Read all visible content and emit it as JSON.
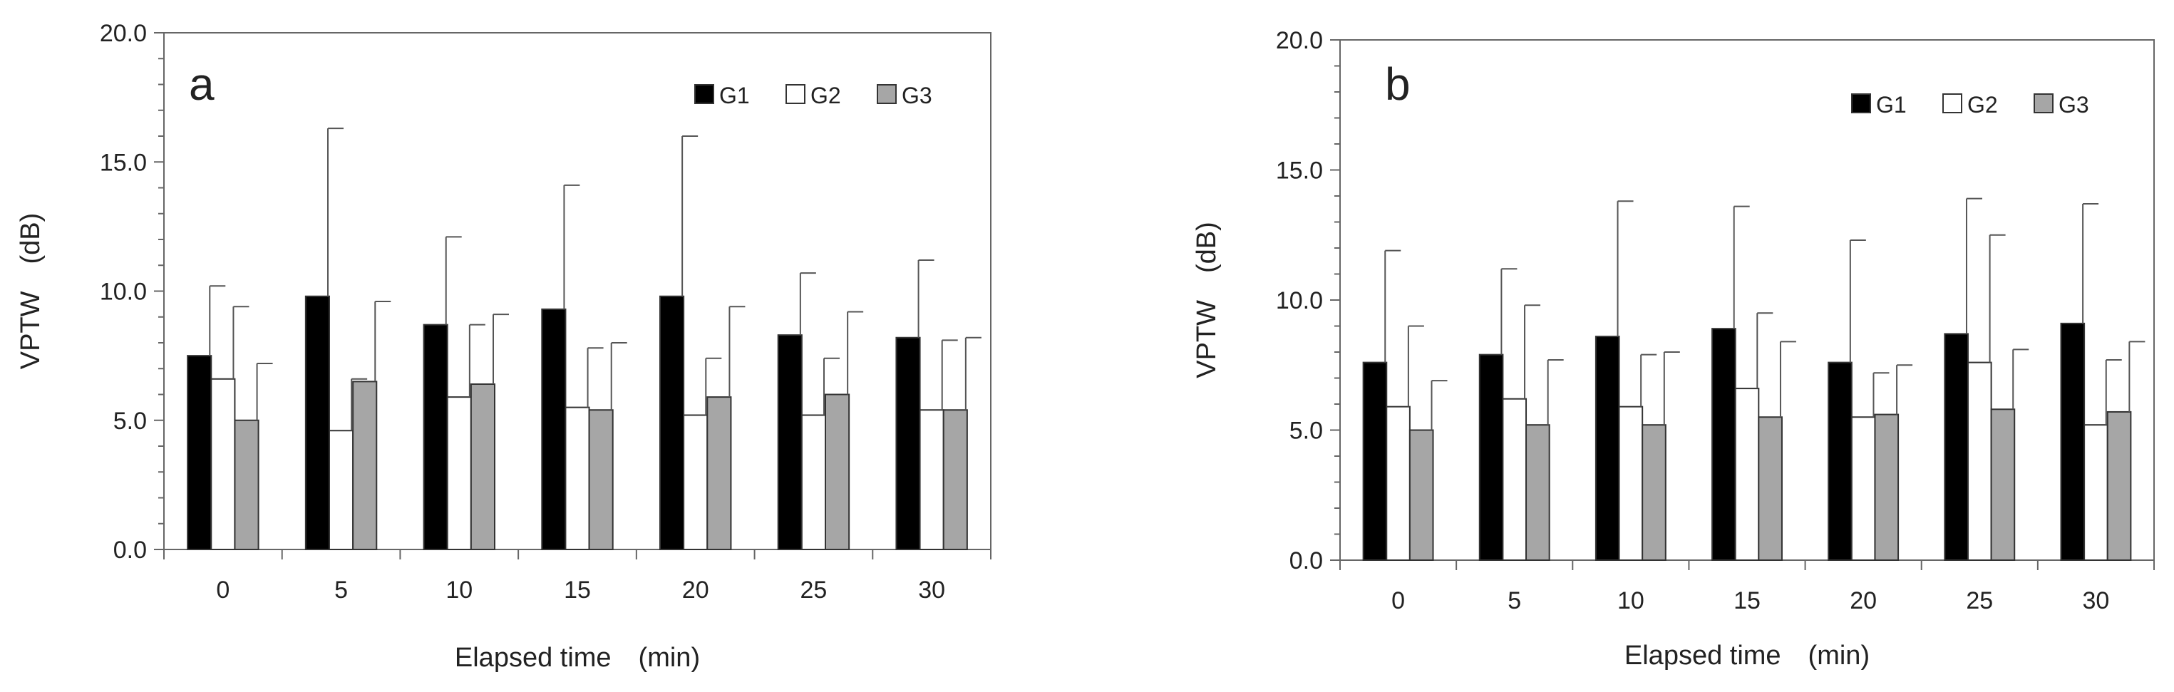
{
  "figure": {
    "colors": {
      "G1": "#000000",
      "G2": "#ffffff",
      "G3": "#a6a6a6",
      "edge": "#333333",
      "axis": "#666666",
      "text": "#222222"
    }
  },
  "chart_data": [
    {
      "type": "bar",
      "panel_label": "a",
      "categories": [
        "0",
        "5",
        "10",
        "15",
        "20",
        "25",
        "30"
      ],
      "xlabel": "Elapsed time　(min)",
      "ylabel": "VPTW　(dB)",
      "ylim": [
        0,
        20
      ],
      "yticks": [
        "0.0",
        "5.0",
        "10.0",
        "15.0",
        "20.0"
      ],
      "legend_position": "top-right",
      "series": [
        {
          "name": "G1",
          "values": [
            7.5,
            9.8,
            8.7,
            9.3,
            9.8,
            8.3,
            8.2
          ],
          "errors": [
            2.7,
            6.5,
            3.4,
            4.8,
            6.2,
            2.4,
            3.0
          ]
        },
        {
          "name": "G2",
          "values": [
            6.6,
            4.6,
            5.9,
            5.5,
            5.2,
            5.2,
            5.4
          ],
          "errors": [
            2.8,
            2.0,
            2.8,
            2.3,
            2.2,
            2.2,
            2.7
          ]
        },
        {
          "name": "G3",
          "values": [
            5.0,
            6.5,
            6.4,
            5.4,
            5.9,
            6.0,
            5.4
          ],
          "errors": [
            2.2,
            3.1,
            2.7,
            2.6,
            3.5,
            3.2,
            2.8
          ]
        }
      ]
    },
    {
      "type": "bar",
      "panel_label": "b",
      "categories": [
        "0",
        "5",
        "10",
        "15",
        "20",
        "25",
        "30"
      ],
      "xlabel": "Elapsed time　(min)",
      "ylabel": "VPTW　(dB)",
      "ylim": [
        0,
        20
      ],
      "yticks": [
        "0.0",
        "5.0",
        "10.0",
        "15.0",
        "20.0"
      ],
      "legend_position": "top-right",
      "series": [
        {
          "name": "G1",
          "values": [
            7.6,
            7.9,
            8.6,
            8.9,
            7.6,
            8.7,
            9.1
          ],
          "errors": [
            4.3,
            3.3,
            5.2,
            4.7,
            4.7,
            5.2,
            4.6
          ]
        },
        {
          "name": "G2",
          "values": [
            5.9,
            6.2,
            5.9,
            6.6,
            5.5,
            7.6,
            5.2
          ],
          "errors": [
            3.1,
            3.6,
            2.0,
            2.9,
            1.7,
            4.9,
            2.5
          ]
        },
        {
          "name": "G3",
          "values": [
            5.0,
            5.2,
            5.2,
            5.5,
            5.6,
            5.8,
            5.7
          ],
          "errors": [
            1.9,
            2.5,
            2.8,
            2.9,
            1.9,
            2.3,
            2.7
          ]
        }
      ]
    }
  ]
}
